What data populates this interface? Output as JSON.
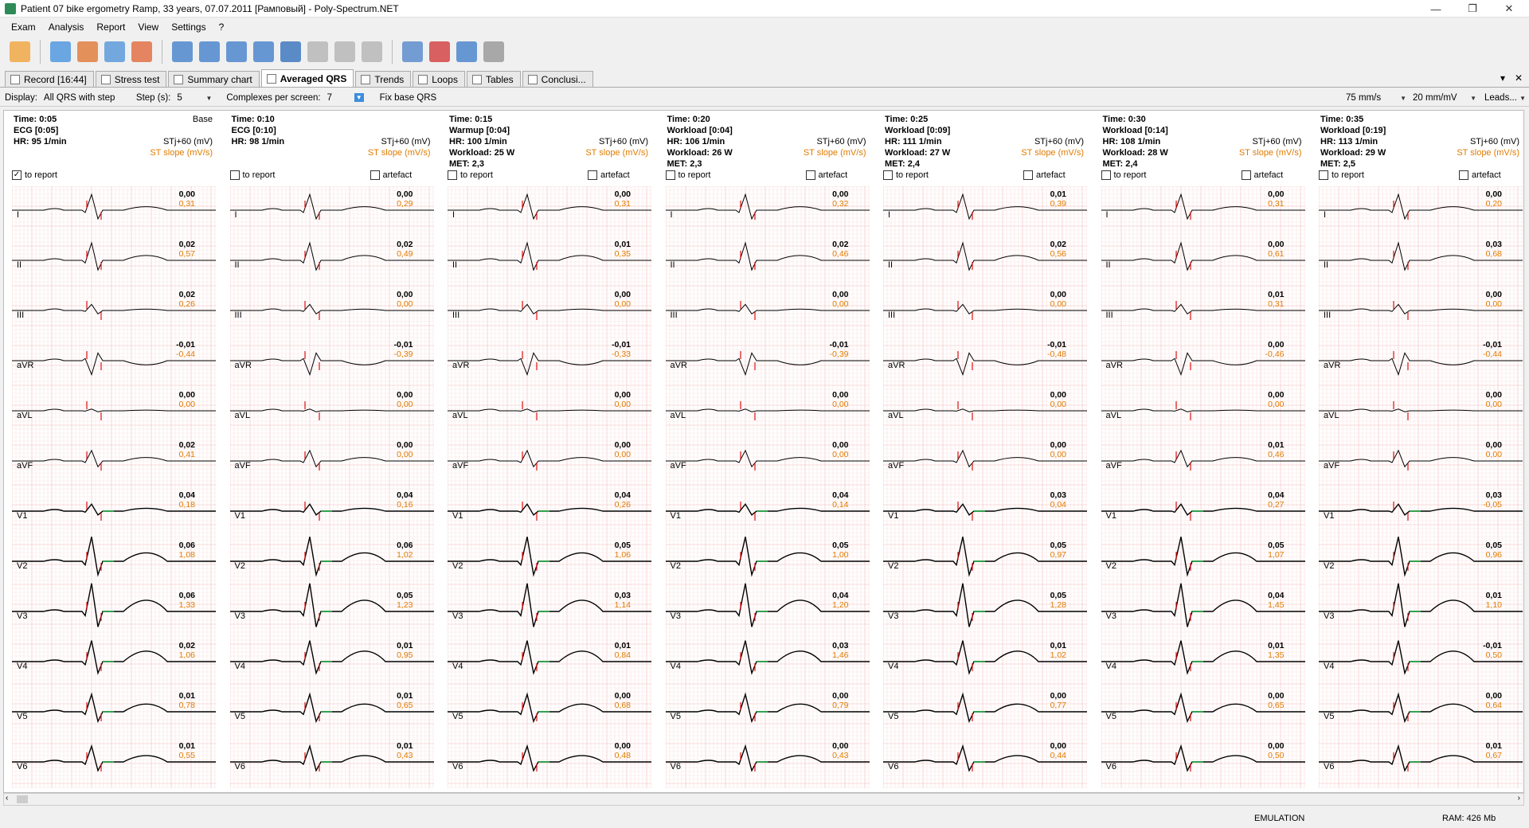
{
  "window": {
    "title": "Patient 07 bike ergometry Ramp, 33 years, 07.07.2011 [Рамповый] - Poly-Spectrum.NET",
    "minimize": "—",
    "restore": "❐",
    "close": "✕"
  },
  "menu": [
    "Exam",
    "Analysis",
    "Report",
    "View",
    "Settings",
    "?"
  ],
  "toolbar_icons": [
    "open-exam-icon",
    "save-icon",
    "import-icon",
    "export-icon",
    "print-icon",
    "search-icon",
    "markers-icon",
    "rr-icon",
    "measure-icon",
    "bike-icon",
    "peak-icon",
    "home-icon",
    "device-icon",
    "report-icon",
    "delete-icon",
    "copy-icon",
    "histogram-icon"
  ],
  "tabs": [
    {
      "label": "Record [16:44]",
      "active": false
    },
    {
      "label": "Stress test",
      "active": false
    },
    {
      "label": "Summary chart",
      "active": false
    },
    {
      "label": "Averaged QRS",
      "active": true
    },
    {
      "label": "Trends",
      "active": false
    },
    {
      "label": "Loops",
      "active": false
    },
    {
      "label": "Tables",
      "active": false
    },
    {
      "label": "Conclusi...",
      "active": false
    }
  ],
  "tab_controls": {
    "dropdown": "▾",
    "close": "✕"
  },
  "options": {
    "display_label": "Display:",
    "display_value": "All QRS with step",
    "step_label": "Step (s):",
    "step_value": "5",
    "complexes_label": "Complexes per screen:",
    "complexes_value": "7",
    "fix_base": "Fix base QRS",
    "speed": "75 mm/s",
    "gain": "20 mm/mV",
    "leads": "Leads..."
  },
  "common": {
    "stj": "STj+60 (mV)",
    "st_slope": "ST slope (mV/s)",
    "to_report": "to report",
    "artefact": "artefact",
    "base": "Base",
    "checkmark": "✓"
  },
  "leads": [
    "I",
    "II",
    "III",
    "aVR",
    "aVL",
    "aVF",
    "V1",
    "V2",
    "V3",
    "V4",
    "V5",
    "V6"
  ],
  "columns": [
    {
      "time": "Time: 0:05",
      "stage": "ECG [0:05]",
      "hr": "HR: 95 1/min",
      "workload": "",
      "met": "",
      "base": true,
      "to_report": true,
      "st": [
        "0,00",
        "0,02",
        "0,02",
        "-0,01",
        "0,00",
        "0,02",
        "0,04",
        "0,06",
        "0,06",
        "0,02",
        "0,01",
        "0,01"
      ],
      "slope": [
        "0,31",
        "0,57",
        "0,26",
        "-0,44",
        "0,00",
        "0,41",
        "0,18",
        "1,08",
        "1,33",
        "1,06",
        "0,78",
        "0,55"
      ]
    },
    {
      "time": "Time: 0:10",
      "stage": "ECG [0:10]",
      "hr": "HR: 98 1/min",
      "workload": "",
      "met": "",
      "base": false,
      "to_report": false,
      "st": [
        "0,00",
        "0,02",
        "0,00",
        "-0,01",
        "0,00",
        "0,00",
        "0,04",
        "0,06",
        "0,05",
        "0,01",
        "0,01",
        "0,01"
      ],
      "slope": [
        "0,29",
        "0,49",
        "0,00",
        "-0,39",
        "0,00",
        "0,00",
        "0,16",
        "1,02",
        "1,23",
        "0,95",
        "0,65",
        "0,43"
      ]
    },
    {
      "time": "Time: 0:15",
      "stage": "Warmup [0:04]",
      "hr": "HR: 100 1/min",
      "workload": "Workload: 25 W",
      "met": "MET: 2,3",
      "base": false,
      "to_report": false,
      "st": [
        "0,00",
        "0,01",
        "0,00",
        "-0,01",
        "0,00",
        "0,00",
        "0,04",
        "0,05",
        "0,03",
        "0,01",
        "0,00",
        "0,00"
      ],
      "slope": [
        "0,31",
        "0,35",
        "0,00",
        "-0,33",
        "0,00",
        "0,00",
        "0,26",
        "1,06",
        "1,14",
        "0,84",
        "0,68",
        "0,48"
      ]
    },
    {
      "time": "Time: 0:20",
      "stage": "Workload [0:04]",
      "hr": "HR: 106 1/min",
      "workload": "Workload: 26 W",
      "met": "MET: 2,3",
      "base": false,
      "to_report": false,
      "st": [
        "0,00",
        "0,02",
        "0,00",
        "-0,01",
        "0,00",
        "0,00",
        "0,04",
        "0,05",
        "0,04",
        "0,03",
        "0,00",
        "0,00"
      ],
      "slope": [
        "0,32",
        "0,46",
        "0,00",
        "-0,39",
        "0,00",
        "0,00",
        "0,14",
        "1,00",
        "1,20",
        "1,46",
        "0,79",
        "0,43"
      ]
    },
    {
      "time": "Time: 0:25",
      "stage": "Workload [0:09]",
      "hr": "HR: 111 1/min",
      "workload": "Workload: 27 W",
      "met": "MET: 2,4",
      "base": false,
      "to_report": false,
      "st": [
        "0,01",
        "0,02",
        "0,00",
        "-0,01",
        "0,00",
        "0,00",
        "0,03",
        "0,05",
        "0,05",
        "0,01",
        "0,00",
        "0,00"
      ],
      "slope": [
        "0,39",
        "0,56",
        "0,00",
        "-0,48",
        "0,00",
        "0,00",
        "0,04",
        "0,97",
        "1,28",
        "1,02",
        "0,77",
        "0,44"
      ]
    },
    {
      "time": "Time: 0:30",
      "stage": "Workload [0:14]",
      "hr": "HR: 108 1/min",
      "workload": "Workload: 28 W",
      "met": "MET: 2,4",
      "base": false,
      "to_report": false,
      "st": [
        "0,00",
        "0,00",
        "0,01",
        "0,00",
        "0,00",
        "0,01",
        "0,04",
        "0,05",
        "0,04",
        "0,01",
        "0,00",
        "0,00"
      ],
      "slope": [
        "0,31",
        "0,61",
        "0,31",
        "-0,46",
        "0,00",
        "0,46",
        "0,27",
        "1,07",
        "1,45",
        "1,35",
        "0,65",
        "0,50"
      ]
    },
    {
      "time": "Time: 0:35",
      "stage": "Workload [0:19]",
      "hr": "HR: 113 1/min",
      "workload": "Workload: 29 W",
      "met": "MET: 2,5",
      "base": false,
      "to_report": false,
      "st": [
        "0,00",
        "0,03",
        "0,00",
        "-0,01",
        "0,00",
        "0,00",
        "0,03",
        "0,05",
        "0,01",
        "-0,01",
        "0,00",
        "0,01"
      ],
      "slope": [
        "0,20",
        "0,68",
        "0,00",
        "-0,44",
        "0,00",
        "0,00",
        "-0,05",
        "0,96",
        "1,10",
        "0,50",
        "0,64",
        "0,67"
      ]
    }
  ],
  "status": {
    "mode": "EMULATION",
    "ram": "RAM: 426 Mb"
  },
  "colors": {
    "grid_major": "#f2b8b8",
    "grid_minor": "#fbe3e3",
    "trace": "#000000",
    "marker": "#e01010",
    "st_segment": "#22aa44",
    "slope": "#e07b00"
  }
}
